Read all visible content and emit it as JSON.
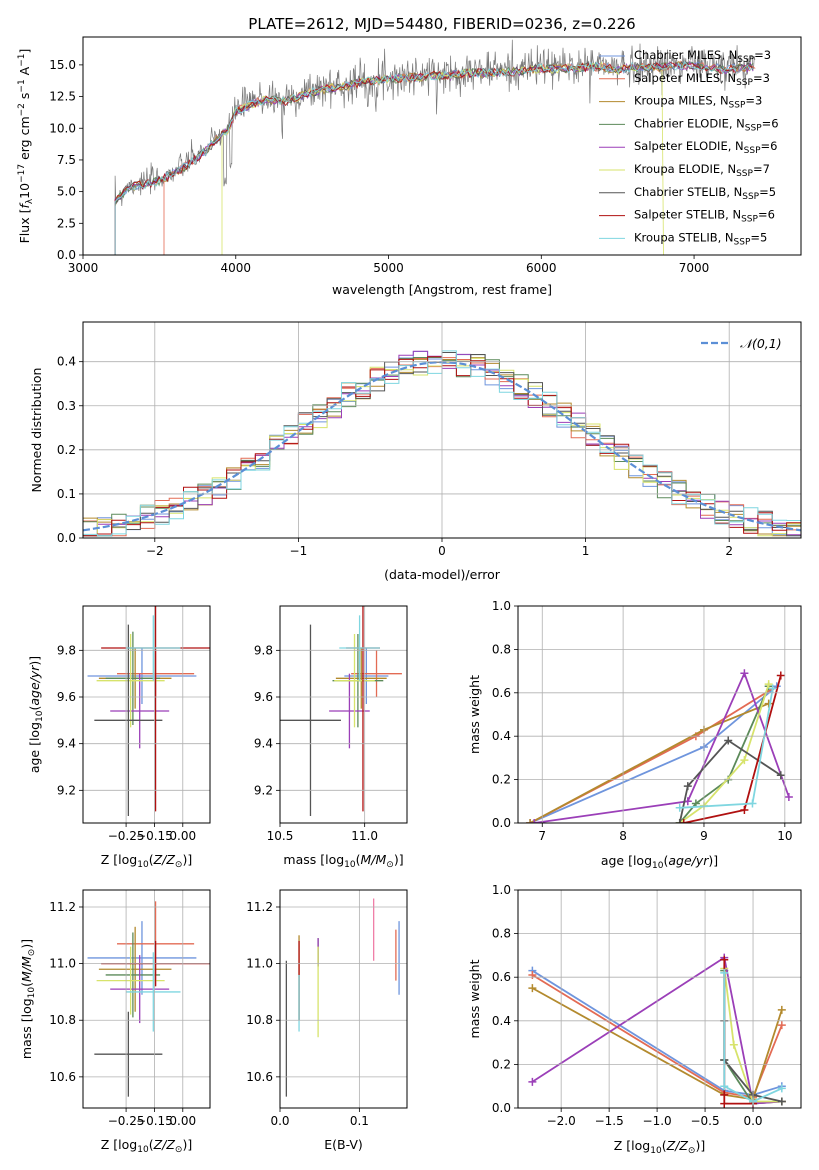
{
  "figure_title": "PLATE=2612, MJD=54480, FIBERID=0236, z=0.226",
  "model_names": [
    "Chabrier MILES",
    "Salpeter MILES",
    "Kroupa MILES",
    "Chabrier ELODIE",
    "Salpeter ELODIE",
    "Kroupa ELODIE",
    "Chabrier STELIB",
    "Salpeter STELIB",
    "Kroupa STELIB"
  ],
  "model_nssp": [
    "3",
    "3",
    "3",
    "6",
    "6",
    "7",
    "5",
    "6",
    "5"
  ],
  "model_colors": [
    "#6f95dd",
    "#e36b54",
    "#b38a2e",
    "#5c8a5a",
    "#9b3fb8",
    "#d7e36b",
    "#555555",
    "#b01010",
    "#7fd6e0"
  ],
  "chart_data": [
    {
      "type": "line",
      "title": "PLATE=2612, MJD=54480, FIBERID=0236, z=0.226",
      "xlabel": "wavelength [Angstrom, rest frame]",
      "ylabel": "Flux [f_λ 10^-17 erg cm^-2 s^-1 A^-1]",
      "xlim": [
        3000,
        7700
      ],
      "ylim": [
        0,
        17.2
      ],
      "xticks": [
        "3000",
        "4000",
        "5000",
        "6000",
        "7000"
      ],
      "yticks": [
        "0.0",
        "2.5",
        "5.0",
        "7.5",
        "10.0",
        "12.5",
        "15.0"
      ],
      "legend": [
        "Chabrier MILES, N_SSP=3",
        "Salpeter MILES, N_SSP=3",
        "Kroupa MILES, N_SSP=3",
        "Chabrier ELODIE, N_SSP=6",
        "Salpeter ELODIE, N_SSP=6",
        "Kroupa ELODIE, N_SSP=7",
        "Chabrier STELIB, N_SSP=5",
        "Salpeter STELIB, N_SSP=6",
        "Kroupa STELIB, N_SSP=5"
      ],
      "legend_position": "right",
      "spectrum_x": [
        3210,
        3300,
        3400,
        3500,
        3600,
        3700,
        3800,
        3900,
        3950,
        4000,
        4100,
        4200,
        4300,
        4400,
        4500,
        4600,
        4700,
        4800,
        4900,
        5000,
        5100,
        5200,
        5300,
        5400,
        5500,
        5600,
        5700,
        5800,
        5900,
        6000,
        6100,
        6200,
        6300,
        6400,
        6500,
        6600,
        6700,
        6800,
        6900,
        7000,
        7100,
        7200,
        7300,
        7400
      ],
      "spectrum_y": [
        4.3,
        5.5,
        5.7,
        6.0,
        6.6,
        7.4,
        8.3,
        9.6,
        10.0,
        11.5,
        12.0,
        12.5,
        12.2,
        12.6,
        13.0,
        13.3,
        13.4,
        13.7,
        13.9,
        14.0,
        14.1,
        14.2,
        14.3,
        14.3,
        14.5,
        14.5,
        14.6,
        14.6,
        14.7,
        14.9,
        14.8,
        14.9,
        15.0,
        15.0,
        14.7,
        15.0,
        14.9,
        15.0,
        15.1,
        15.1,
        15.0,
        14.8,
        14.9,
        15.0
      ],
      "model_starts": [
        3210,
        3530,
        3210,
        3210,
        3210,
        3910,
        3210,
        3210,
        3210
      ],
      "model_ends": [
        7400,
        7400,
        7400,
        7400,
        7400,
        6800,
        7400,
        7400,
        7400
      ]
    },
    {
      "type": "histogram",
      "xlabel": "(data-model)/error",
      "ylabel": "Normed distribution",
      "xlim": [
        -2.5,
        2.5
      ],
      "ylim": [
        0,
        0.49
      ],
      "xticks": [
        "−2",
        "−1",
        "0",
        "1",
        "2"
      ],
      "yticks": [
        "0.0",
        "0.1",
        "0.2",
        "0.3",
        "0.4"
      ],
      "legend": "𝒩(0,1)",
      "legend_position": "top-right",
      "bin_width": 0.1,
      "gaussian_sigma": 1.0
    },
    {
      "type": "scatter",
      "xlabel": "Z [log10(Z/Z⊙)]",
      "ylabel": "age [log10(age/yr)]",
      "xlim": [
        -0.44,
        0.12
      ],
      "ylim": [
        9.06,
        9.99
      ],
      "xticks": [
        "−0.25",
        "−0.15",
        "0.00"
      ],
      "xtick_values": [
        -0.25,
        -0.125,
        0.0
      ],
      "yticks": [
        "9.2",
        "9.4",
        "9.6",
        "9.8"
      ],
      "ytick_values": [
        9.2,
        9.4,
        9.6,
        9.8
      ],
      "points": [
        {
          "x": -0.18,
          "y": 9.69,
          "xerr": 0.24,
          "yerr": 0.12
        },
        {
          "x": -0.12,
          "y": 9.7,
          "xerr": 0.17,
          "yerr": 0.1
        },
        {
          "x": -0.21,
          "y": 9.68,
          "xerr": 0.16,
          "yerr": 0.13
        },
        {
          "x": -0.22,
          "y": 9.68,
          "xerr": 0.12,
          "yerr": 0.2
        },
        {
          "x": -0.19,
          "y": 9.54,
          "xerr": 0.13,
          "yerr": 0.16
        },
        {
          "x": -0.23,
          "y": 9.67,
          "xerr": 0.15,
          "yerr": 0.2
        },
        {
          "x": -0.24,
          "y": 9.5,
          "xerr": 0.15,
          "yerr": 0.41
        },
        {
          "x": -0.12,
          "y": 9.81,
          "xerr": 0.24,
          "yerr": 0.7
        },
        {
          "x": -0.13,
          "y": 9.81,
          "xerr": 0.12,
          "yerr": 0.14
        }
      ]
    },
    {
      "type": "scatter",
      "xlabel": "mass [log10(M/M⊙)]",
      "ylabel": "",
      "xlim": [
        10.5,
        11.25
      ],
      "ylim": [
        9.06,
        9.99
      ],
      "xticks": [
        "10.5",
        "11.0"
      ],
      "xtick_values": [
        10.5,
        11.0
      ],
      "yticks": [
        "9.2",
        "9.4",
        "9.6",
        "9.8"
      ],
      "ytick_values": [
        9.2,
        9.4,
        9.6,
        9.8
      ],
      "points": [
        {
          "x": 11.01,
          "y": 9.69,
          "xerr": 0.13,
          "yerr": 0.12
        },
        {
          "x": 11.07,
          "y": 9.7,
          "xerr": 0.15,
          "yerr": 0.1
        },
        {
          "x": 10.98,
          "y": 9.68,
          "xerr": 0.15,
          "yerr": 0.13
        },
        {
          "x": 10.96,
          "y": 9.67,
          "xerr": 0.15,
          "yerr": 0.2
        },
        {
          "x": 10.91,
          "y": 9.54,
          "xerr": 0.12,
          "yerr": 0.16
        },
        {
          "x": 10.94,
          "y": 9.67,
          "xerr": 0.12,
          "yerr": 0.2
        },
        {
          "x": 10.68,
          "y": 9.5,
          "xerr": 0.18,
          "yerr": 0.41
        },
        {
          "x": 10.99,
          "y": 9.81,
          "xerr": 0.1,
          "yerr": 0.7
        },
        {
          "x": 10.97,
          "y": 9.81,
          "xerr": 0.12,
          "yerr": 0.14
        }
      ]
    },
    {
      "type": "line",
      "xlabel": "age [log10(age/yr)]",
      "ylabel": "mass weight",
      "xlim": [
        6.7,
        10.2
      ],
      "ylim": [
        0,
        1.0
      ],
      "xticks": [
        "7",
        "8",
        "9",
        "10"
      ],
      "xtick_values": [
        7,
        8,
        9,
        10
      ],
      "yticks": [
        "0.0",
        "0.2",
        "0.4",
        "0.6",
        "0.8",
        "1.0"
      ],
      "ytick_values": [
        0,
        0.2,
        0.4,
        0.6,
        0.8,
        1.0
      ],
      "series": [
        {
          "x": [
            9.9,
            9.0,
            6.85
          ],
          "y": [
            0.63,
            0.35,
            0.0
          ]
        },
        {
          "x": [
            9.85,
            8.9,
            6.85
          ],
          "y": [
            0.62,
            0.4,
            0.0
          ]
        },
        {
          "x": [
            9.8,
            9.0,
            6.85
          ],
          "y": [
            0.55,
            0.43,
            0.0
          ]
        },
        {
          "x": [
            9.8,
            9.3,
            8.9,
            8.7
          ],
          "y": [
            0.63,
            0.2,
            0.09,
            0.0
          ]
        },
        {
          "x": [
            10.05,
            9.5,
            8.8,
            6.9
          ],
          "y": [
            0.12,
            0.69,
            0.1,
            0.0
          ]
        },
        {
          "x": [
            9.8,
            9.5,
            9.0,
            8.7
          ],
          "y": [
            0.64,
            0.29,
            0.08,
            0.0
          ]
        },
        {
          "x": [
            9.95,
            9.3,
            8.8,
            8.7
          ],
          "y": [
            0.22,
            0.38,
            0.17,
            0.0
          ]
        },
        {
          "x": [
            9.95,
            9.5,
            8.75
          ],
          "y": [
            0.68,
            0.06,
            0.0
          ]
        },
        {
          "x": [
            9.85,
            9.6,
            8.7
          ],
          "y": [
            0.62,
            0.09,
            0.07
          ]
        }
      ]
    },
    {
      "type": "scatter",
      "xlabel": "Z [log10(Z/Z⊙)]",
      "ylabel": "mass [log10(M/M⊙)]",
      "xlim": [
        -0.44,
        0.12
      ],
      "ylim": [
        10.49,
        11.26
      ],
      "xticks": [
        "−0.25",
        "−0.15",
        "0.00"
      ],
      "xtick_values": [
        -0.25,
        -0.125,
        0.0
      ],
      "yticks": [
        "10.6",
        "10.8",
        "11.0",
        "11.2"
      ],
      "ytick_values": [
        10.6,
        10.8,
        11.0,
        11.2
      ],
      "points": [
        {
          "x": -0.18,
          "y": 11.02,
          "xerr": 0.24,
          "yerr": 0.13
        },
        {
          "x": -0.12,
          "y": 11.07,
          "xerr": 0.17,
          "yerr": 0.15
        },
        {
          "x": -0.21,
          "y": 10.98,
          "xerr": 0.16,
          "yerr": 0.15
        },
        {
          "x": -0.22,
          "y": 10.96,
          "xerr": 0.12,
          "yerr": 0.15
        },
        {
          "x": -0.19,
          "y": 10.91,
          "xerr": 0.13,
          "yerr": 0.12
        },
        {
          "x": -0.23,
          "y": 10.94,
          "xerr": 0.15,
          "yerr": 0.12
        },
        {
          "x": -0.24,
          "y": 10.68,
          "xerr": 0.15,
          "yerr": 0.15
        },
        {
          "x": -0.12,
          "y": 11.0,
          "xerr": 0.24,
          "yerr": 0.08
        },
        {
          "x": -0.13,
          "y": 10.9,
          "xerr": 0.12,
          "yerr": 0.14
        }
      ]
    },
    {
      "type": "scatter",
      "xlabel": "E(B-V)",
      "ylabel": "",
      "xlim": [
        0.0,
        0.16
      ],
      "ylim": [
        10.49,
        11.26
      ],
      "xticks": [
        "0.0",
        "0.1"
      ],
      "xtick_values": [
        0.0,
        0.1
      ],
      "yticks": [
        "10.6",
        "10.8",
        "11.0",
        "11.2"
      ],
      "ytick_values": [
        10.6,
        10.8,
        11.0,
        11.2
      ],
      "points": [
        {
          "x": 0.15,
          "y": 11.02,
          "yerr": 0.13
        },
        {
          "x": 0.146,
          "y": 11.03,
          "yerr": 0.09
        },
        {
          "x": 0.024,
          "y": 10.95,
          "yerr": 0.15
        },
        {
          "x": 0.048,
          "y": 11.04,
          "yerr": 0.05
        },
        {
          "x": 0.048,
          "y": 11.04,
          "yerr": 0.05
        },
        {
          "x": 0.048,
          "y": 10.9,
          "yerr": 0.16
        },
        {
          "x": 0.008,
          "y": 10.77,
          "yerr": 0.24
        },
        {
          "x": 0.024,
          "y": 10.94,
          "yerr": 0.14
        },
        {
          "x": 0.024,
          "y": 10.86,
          "yerr": 0.1
        }
      ],
      "extra_marks": [
        {
          "x": 0.118,
          "y": 11.12,
          "yerr": 0.11
        }
      ]
    },
    {
      "type": "line",
      "xlabel": "Z [log10(Z/Z⊙)]",
      "ylabel": "mass weight",
      "xlim": [
        -2.45,
        0.5
      ],
      "ylim": [
        0,
        1.0
      ],
      "xticks": [
        "−2.0",
        "−1.5",
        "−1.0",
        "−0.5",
        "0.0"
      ],
      "xtick_values": [
        -2.0,
        -1.5,
        -1.0,
        -0.5,
        0.0
      ],
      "yticks": [
        "0.0",
        "0.2",
        "0.4",
        "0.6",
        "0.8",
        "1.0"
      ],
      "ytick_values": [
        0,
        0.2,
        0.4,
        0.6,
        0.8,
        1.0
      ],
      "series": [
        {
          "x": [
            -2.3,
            -0.3,
            0.0,
            0.3
          ],
          "y": [
            0.63,
            0.08,
            0.06,
            0.1
          ]
        },
        {
          "x": [
            -2.3,
            -0.3,
            0.0,
            0.3
          ],
          "y": [
            0.61,
            0.07,
            0.05,
            0.38
          ]
        },
        {
          "x": [
            -2.3,
            -0.3,
            0.0,
            0.3
          ],
          "y": [
            0.55,
            0.06,
            0.04,
            0.45
          ]
        },
        {
          "x": [
            -0.3,
            -0.3,
            0.0,
            0.3
          ],
          "y": [
            0.63,
            0.22,
            0.02,
            0.03
          ]
        },
        {
          "x": [
            -2.3,
            -0.3,
            0.0,
            0.3
          ],
          "y": [
            0.12,
            0.69,
            0.02,
            0.03
          ]
        },
        {
          "x": [
            -0.3,
            -0.2,
            0.0,
            0.3
          ],
          "y": [
            0.64,
            0.29,
            0.03,
            0.03
          ]
        },
        {
          "x": [
            -0.3,
            -0.3,
            0.0,
            0.3
          ],
          "y": [
            0.4,
            0.22,
            0.06,
            0.03
          ]
        },
        {
          "x": [
            -0.3,
            -0.3,
            -0.3,
            0.0
          ],
          "y": [
            0.68,
            0.06,
            0.02,
            0.02
          ]
        },
        {
          "x": [
            -0.3,
            -0.3,
            0.0,
            0.3
          ],
          "y": [
            0.62,
            0.1,
            0.03,
            0.09
          ]
        }
      ]
    }
  ]
}
